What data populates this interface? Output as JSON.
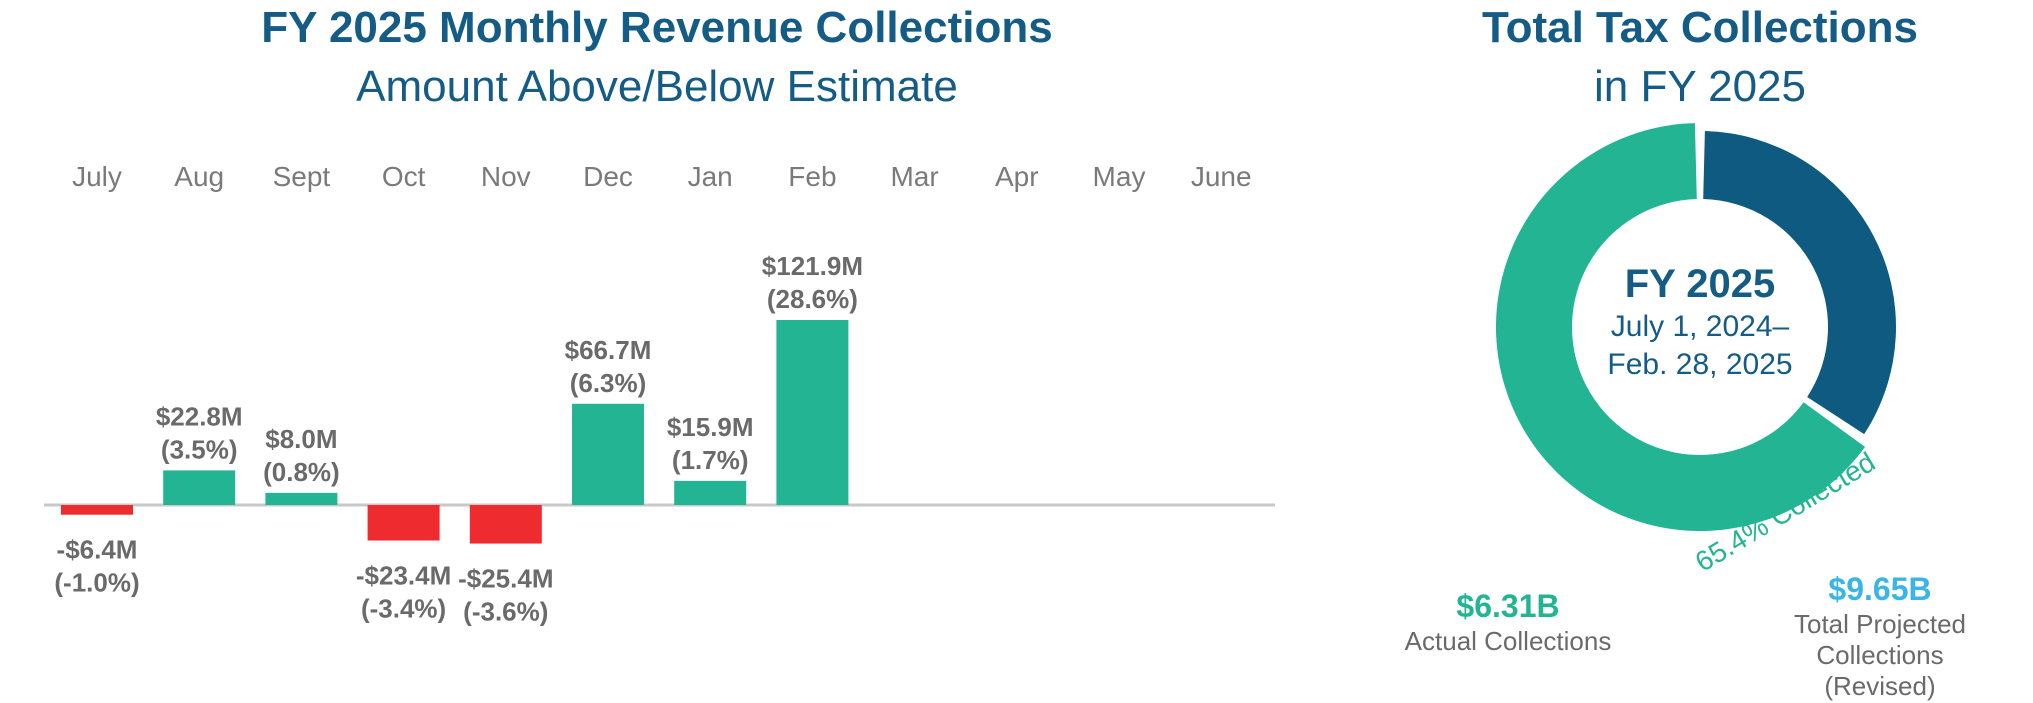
{
  "chart_data": [
    {
      "type": "bar",
      "title": "FY 2025 Monthly Revenue Collections",
      "subtitle": "Amount Above/Below Estimate",
      "categories": [
        "July",
        "Aug",
        "Sept",
        "Oct",
        "Nov",
        "Dec",
        "Jan",
        "Feb",
        "Mar",
        "Apr",
        "May",
        "June"
      ],
      "values": [
        -6.4,
        22.8,
        8.0,
        -23.4,
        -25.4,
        66.7,
        15.9,
        121.9,
        null,
        null,
        null,
        null
      ],
      "value_labels": [
        "-$6.4M",
        "$22.8M",
        "$8.0M",
        "-$23.4M",
        "-$25.4M",
        "$66.7M",
        "$15.9M",
        "$121.9M",
        "",
        "",
        "",
        ""
      ],
      "pct_labels": [
        "(-1.0%)",
        "(3.5%)",
        "(0.8%)",
        "(-3.4%)",
        "(-3.6%)",
        "(6.3%)",
        "(1.7%)",
        "(28.6%)",
        "",
        "",
        "",
        ""
      ],
      "colors": {
        "positive": "#23b593",
        "negative": "#ee2b2f",
        "baseline": "#c8c8c8",
        "month_text": "#7a7a7a"
      },
      "xlabel": "",
      "ylabel": "",
      "ylim": [
        -40,
        130
      ],
      "grid": false
    },
    {
      "type": "pie",
      "title": "Total Tax Collections",
      "subtitle": "in FY 2025",
      "values": [
        65.4,
        34.6
      ],
      "slice_colors": [
        "#23b593",
        "#0e5a80"
      ],
      "center_title": "FY 2025",
      "center_line1": "July 1, 2024–",
      "center_line2": "Feb. 28, 2025",
      "arc_label": "65.4% Collected",
      "actual_value": "$6.31B",
      "actual_caption": "Actual Collections",
      "projected_value": "$9.65B",
      "projected_caption_1": "Total Projected",
      "projected_caption_2": "Collections",
      "projected_caption_3": "(Revised)"
    }
  ]
}
